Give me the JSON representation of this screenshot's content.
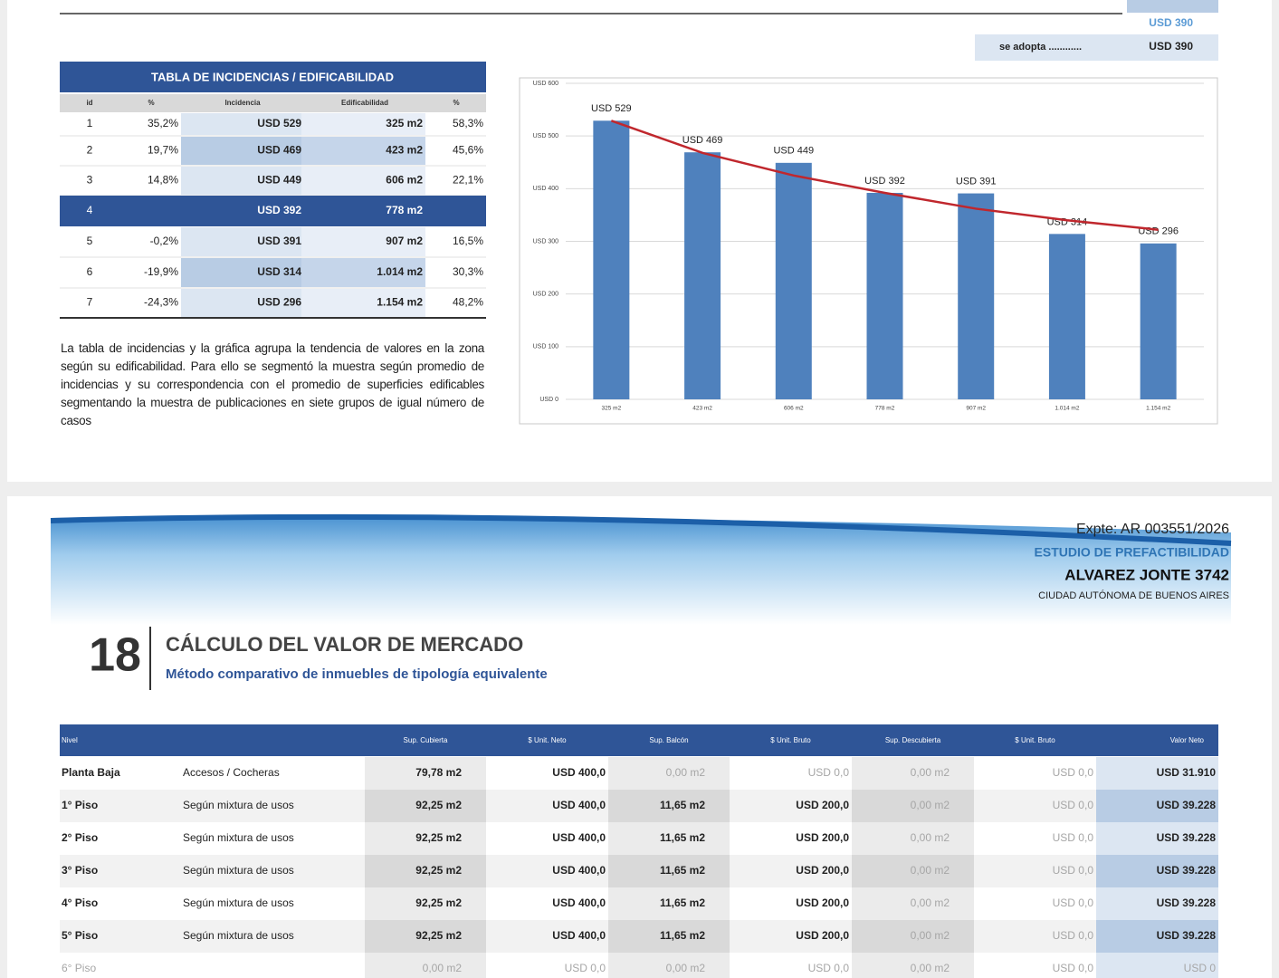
{
  "top": {
    "total": "USD 390",
    "adopt_label": "se adopta ............",
    "adopt_value": "USD 390"
  },
  "incidence_table": {
    "title": "TABLA DE INCIDENCIAS / EDIFICABILIDAD",
    "headers": [
      "id",
      "%",
      "Incidencia",
      "Edificabilidad",
      "%"
    ],
    "rows": [
      [
        "1",
        "35,2%",
        "USD 529",
        "325 m2",
        "58,3%"
      ],
      [
        "2",
        "19,7%",
        "USD 469",
        "423 m2",
        "45,6%"
      ],
      [
        "3",
        "14,8%",
        "USD 449",
        "606 m2",
        "22,1%"
      ],
      [
        "4",
        null,
        "USD 392",
        "778 m2",
        null
      ],
      [
        "5",
        "-0,2%",
        "USD 391",
        "907 m2",
        "16,5%"
      ],
      [
        "6",
        "-19,9%",
        "USD 314",
        "1.014 m2",
        "30,3%"
      ],
      [
        "7",
        "-24,3%",
        "USD 296",
        "1.154 m2",
        "48,2%"
      ]
    ]
  },
  "note": "La tabla de incidencias y la gráfica agrupa la tendencia de valores en la zona según su edificabilidad. Para ello se segmentó la muestra según promedio de incidencias y su correspondencia con el promedio de superficies edificables segmentando la muestra de publicaciones en siete grupos de igual número de casos",
  "chart_data": {
    "type": "bar",
    "color": "#4f81bd",
    "categories": [
      "325 m2",
      "423 m2",
      "606 m2",
      "778 m2",
      "907 m2",
      "1.014 m2",
      "1.154 m2"
    ],
    "values": [
      529,
      469,
      449,
      392,
      391,
      314,
      296
    ],
    "value_labels": [
      "USD 529",
      "USD 469",
      "USD 449",
      "USD 392",
      "USD 391",
      "USD 314",
      "USD 296"
    ],
    "trendline": {
      "color": "#c0272d",
      "values": [
        529,
        468,
        425,
        392,
        362,
        340,
        322
      ]
    },
    "ylim": [
      0,
      600
    ],
    "yticks": [
      {
        "value": 0,
        "label": "USD 0"
      },
      {
        "value": 100,
        "label": "USD 100"
      },
      {
        "value": 200,
        "label": "USD 200"
      },
      {
        "value": 300,
        "label": "USD 300"
      },
      {
        "value": 400,
        "label": "USD 400"
      },
      {
        "value": 500,
        "label": "USD 500"
      },
      {
        "value": 600,
        "label": "USD 600"
      }
    ],
    "grid": true
  },
  "header": {
    "file": "Expte: AR 003551/2026",
    "study": "ESTUDIO DE PREFACTIBILIDAD",
    "address": "ALVAREZ JONTE 3742",
    "city": "CIUDAD AUTÓNOMA DE BUENOS AIRES"
  },
  "section": {
    "number": "18",
    "title": "CÁLCULO DEL VALOR DE MERCADO",
    "subtitle": "Método comparativo de inmuebles de tipología equivalente"
  },
  "valuation_table": {
    "headers": [
      "Nivel",
      null,
      "Sup. Cubierta",
      "$ Unit. Neto",
      "Sup. Balcón",
      "$ Unit. Bruto",
      "Sup. Descubierta",
      "$ Unit. Bruto",
      "Valor Neto"
    ],
    "rows": [
      [
        "Planta Baja",
        "Accesos / Cocheras",
        "79,78 m2",
        "USD 400,0",
        "0,00 m2",
        "USD 0,0",
        "0,00 m2",
        "USD 0,0",
        "USD 31.910"
      ],
      [
        "1° Piso",
        "Según mixtura de usos",
        "92,25 m2",
        "USD 400,0",
        "11,65 m2",
        "USD 200,0",
        "0,00 m2",
        "USD 0,0",
        "USD 39.228"
      ],
      [
        "2° Piso",
        "Según mixtura de usos",
        "92,25 m2",
        "USD 400,0",
        "11,65 m2",
        "USD 200,0",
        "0,00 m2",
        "USD 0,0",
        "USD 39.228"
      ],
      [
        "3° Piso",
        "Según mixtura de usos",
        "92,25 m2",
        "USD 400,0",
        "11,65 m2",
        "USD 200,0",
        "0,00 m2",
        "USD 0,0",
        "USD 39.228"
      ],
      [
        "4° Piso",
        "Según mixtura de usos",
        "92,25 m2",
        "USD 400,0",
        "11,65 m2",
        "USD 200,0",
        "0,00 m2",
        "USD 0,0",
        "USD 39.228"
      ],
      [
        "5° Piso",
        "Según mixtura de usos",
        "92,25 m2",
        "USD 400,0",
        "11,65 m2",
        "USD 200,0",
        "0,00 m2",
        "USD 0,0",
        "USD 39.228"
      ],
      [
        "6° Piso",
        null,
        "0,00 m2",
        "USD 0,0",
        "0,00 m2",
        "USD 0,0",
        "0,00 m2",
        "USD 0,0",
        "USD 0"
      ]
    ]
  }
}
